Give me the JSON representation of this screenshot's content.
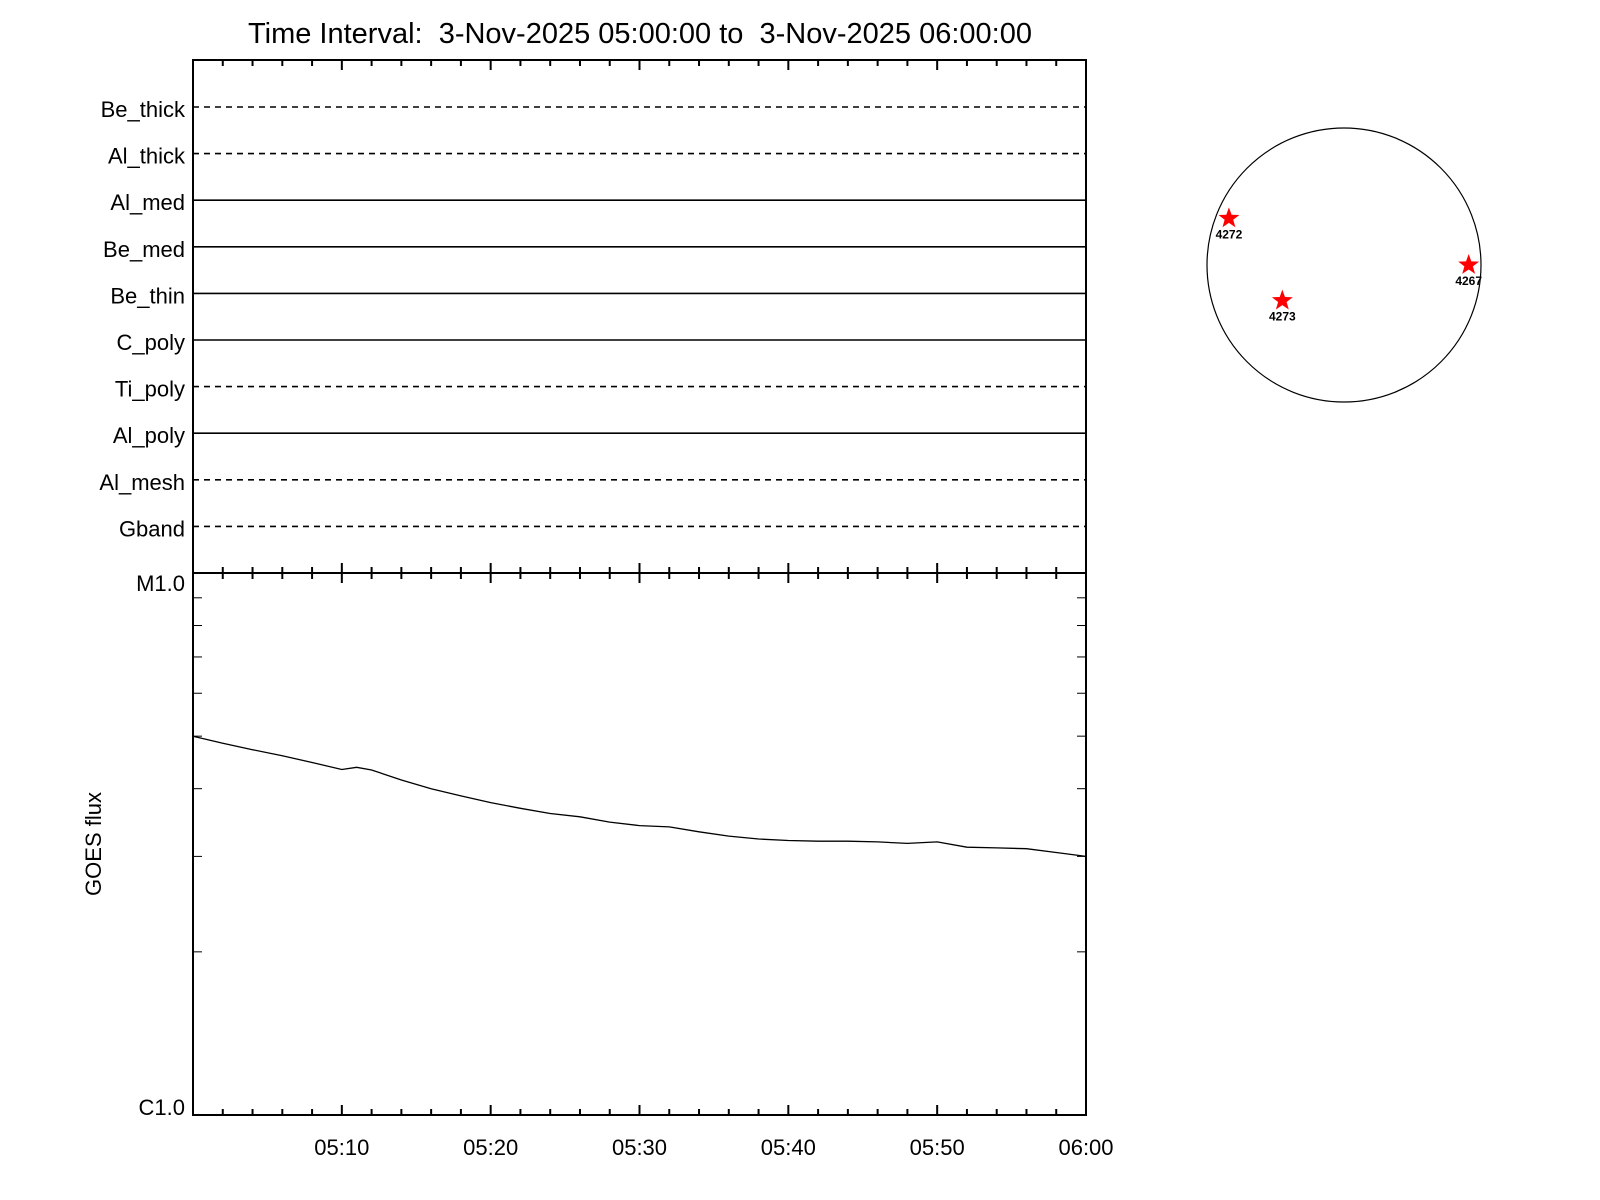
{
  "chart_data": [
    {
      "type": "table",
      "title": "Time Interval:  3-Nov-2025 05:00:00 to  3-Nov-2025 06:00:00",
      "rows": [
        {
          "label": "Be_thick",
          "style": "dashed"
        },
        {
          "label": "Al_thick",
          "style": "dashed"
        },
        {
          "label": "Al_med",
          "style": "solid"
        },
        {
          "label": "Be_med",
          "style": "solid"
        },
        {
          "label": "Be_thin",
          "style": "solid"
        },
        {
          "label": "C_poly",
          "style": "solid"
        },
        {
          "label": "Ti_poly",
          "style": "dashed"
        },
        {
          "label": "Al_poly",
          "style": "solid"
        },
        {
          "label": "Al_mesh",
          "style": "dashed"
        },
        {
          "label": "Gband",
          "style": "dashed"
        }
      ]
    },
    {
      "type": "line",
      "ylabel": "GOES flux",
      "yscale": "log",
      "ylim": [
        1e-06,
        1e-05
      ],
      "ytick_labels": [
        "C1.0",
        "M1.0"
      ],
      "xlim": [
        "05:00",
        "06:00"
      ],
      "xtick_labels": [
        "05:10",
        "05:20",
        "05:30",
        "05:40",
        "05:50",
        "06:00"
      ],
      "grid": false,
      "series": [
        {
          "color": "#000000",
          "x": [
            "05:00",
            "05:02",
            "05:04",
            "05:06",
            "05:08",
            "05:10",
            "05:11",
            "05:12",
            "05:14",
            "05:16",
            "05:18",
            "05:20",
            "05:22",
            "05:24",
            "05:26",
            "05:28",
            "05:30",
            "05:32",
            "05:34",
            "05:36",
            "05:38",
            "05:40",
            "05:42",
            "05:44",
            "05:46",
            "05:48",
            "05:50",
            "05:52",
            "05:54",
            "05:56",
            "05:58",
            "06:00"
          ],
          "y": [
            5e-06,
            4.85e-06,
            4.72e-06,
            4.6e-06,
            4.47e-06,
            4.34e-06,
            4.38e-06,
            4.33e-06,
            4.15e-06,
            4e-06,
            3.88e-06,
            3.77e-06,
            3.68e-06,
            3.6e-06,
            3.55e-06,
            3.47e-06,
            3.42e-06,
            3.4e-06,
            3.33e-06,
            3.27e-06,
            3.23e-06,
            3.21e-06,
            3.2e-06,
            3.2e-06,
            3.19e-06,
            3.17e-06,
            3.19e-06,
            3.12e-06,
            3.11e-06,
            3.1e-06,
            3.05e-06,
            3e-06
          ]
        }
      ]
    },
    {
      "type": "scatter",
      "marker_color": "#ff0000",
      "points": [
        {
          "label": "4272",
          "x": -0.84,
          "y": 0.34
        },
        {
          "label": "4273",
          "x": -0.45,
          "y": -0.26
        },
        {
          "label": "4267",
          "x": 0.91,
          "y": 0.0
        }
      ]
    }
  ]
}
